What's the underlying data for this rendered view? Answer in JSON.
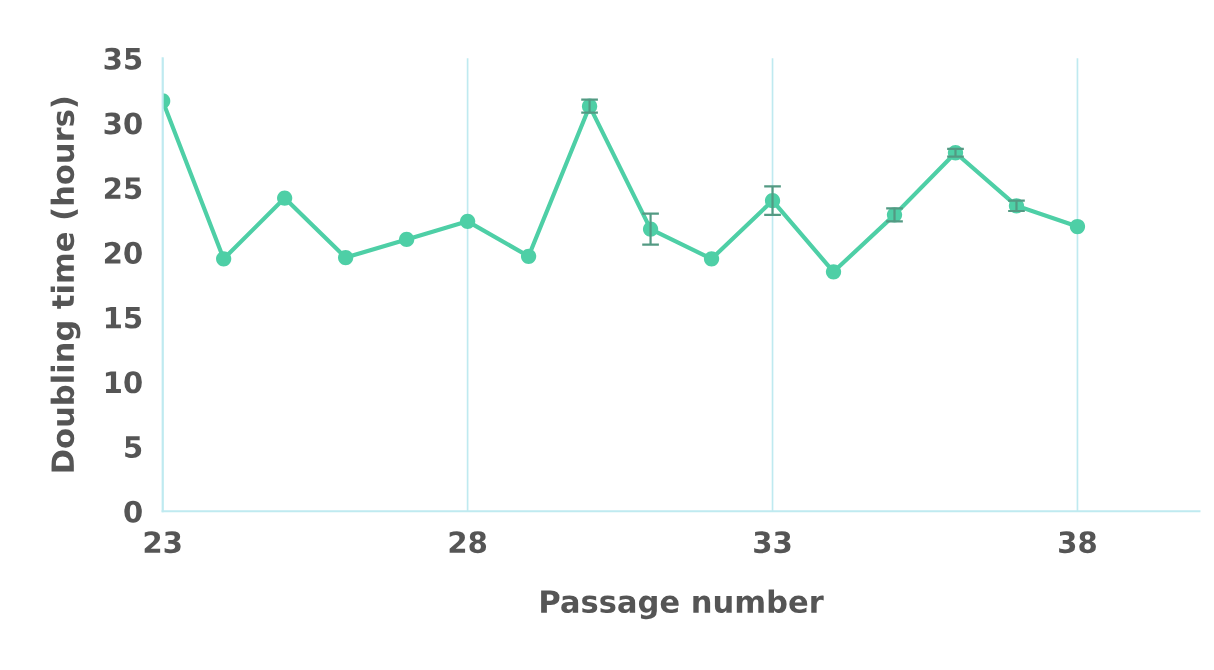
{
  "chart_data": {
    "type": "line",
    "xlabel": "Passage number",
    "ylabel": "Doubling time (hours)",
    "x": [
      23,
      24,
      25,
      26,
      27,
      28,
      29,
      30,
      31,
      32,
      33,
      34,
      35,
      36,
      37,
      38
    ],
    "series": [
      {
        "color": "#4ecfa6",
        "values": [
          31.7,
          19.5,
          24.2,
          19.6,
          21.0,
          22.4,
          19.7,
          31.3,
          21.8,
          19.5,
          24.0,
          18.5,
          22.9,
          27.7,
          23.6,
          22.0
        ],
        "errors": [
          null,
          null,
          null,
          null,
          null,
          null,
          null,
          0.5,
          1.2,
          null,
          1.1,
          null,
          0.5,
          0.3,
          0.4,
          null
        ]
      }
    ],
    "xlim": [
      23,
      40
    ],
    "ylim": [
      0,
      35
    ],
    "xticks": [
      23,
      28,
      33,
      38
    ],
    "yticks": [
      0,
      5,
      10,
      15,
      20,
      25,
      30,
      35
    ],
    "grid": "x",
    "marker": "circle",
    "line_style": "solid"
  }
}
